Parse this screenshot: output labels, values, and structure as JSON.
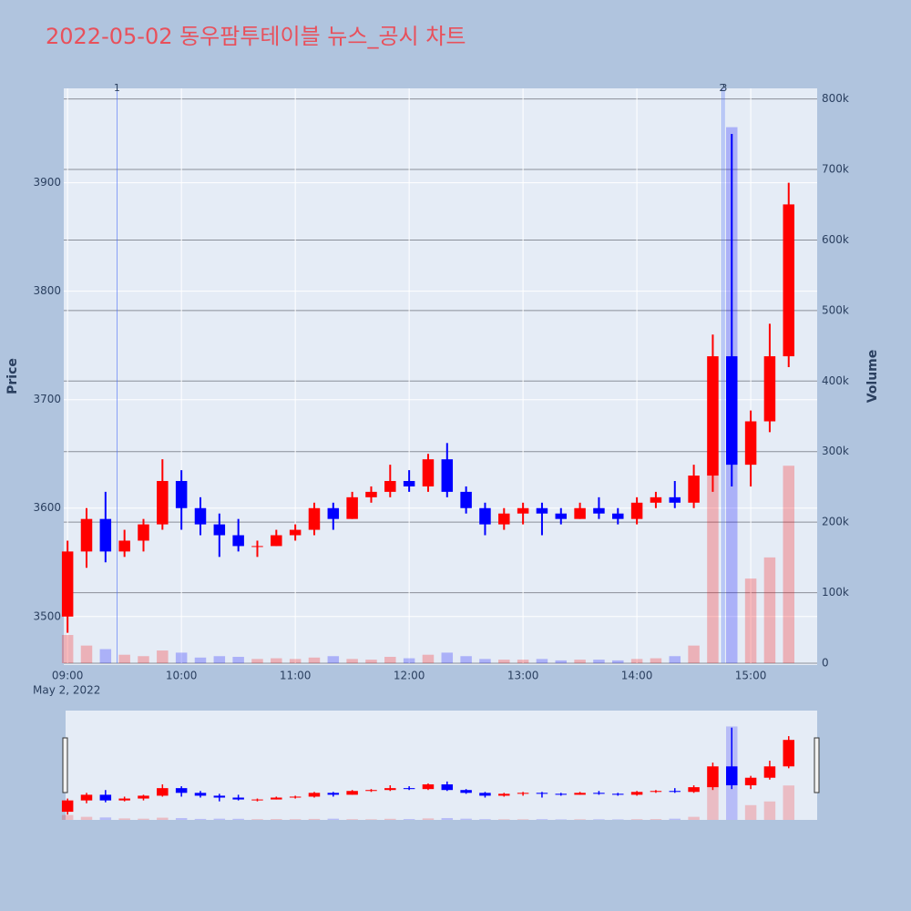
{
  "chart_data": {
    "type": "candlestick",
    "title": "2022-05-02 동우팜투테이블 뉴스_공시 차트",
    "y_label": "Price",
    "y2_label": "Volume",
    "x_date_label": "May 2, 2022",
    "increasing_color": "#ff0000",
    "decreasing_color": "#0000ff",
    "grid": true,
    "x": [
      "09:00",
      "09:10",
      "09:20",
      "09:30",
      "09:40",
      "09:50",
      "10:00",
      "10:10",
      "10:20",
      "10:30",
      "10:40",
      "10:50",
      "11:00",
      "11:10",
      "11:20",
      "11:30",
      "11:40",
      "11:50",
      "12:00",
      "12:10",
      "12:20",
      "12:30",
      "12:40",
      "12:50",
      "13:00",
      "13:10",
      "13:20",
      "13:30",
      "13:40",
      "13:50",
      "14:00",
      "14:10",
      "14:20",
      "14:30",
      "14:40",
      "14:50",
      "15:00",
      "15:10",
      "15:20"
    ],
    "open": [
      3500,
      3560,
      3590,
      3560,
      3570,
      3585,
      3625,
      3600,
      3585,
      3575,
      3565,
      3565,
      3575,
      3580,
      3600,
      3590,
      3610,
      3615,
      3625,
      3620,
      3645,
      3615,
      3600,
      3585,
      3595,
      3600,
      3595,
      3590,
      3600,
      3595,
      3590,
      3605,
      3610,
      3605,
      3630,
      3740,
      3640,
      3680,
      3740
    ],
    "high": [
      3570,
      3600,
      3615,
      3580,
      3590,
      3645,
      3635,
      3610,
      3595,
      3590,
      3570,
      3580,
      3585,
      3605,
      3605,
      3615,
      3620,
      3640,
      3635,
      3650,
      3660,
      3620,
      3605,
      3600,
      3605,
      3605,
      3600,
      3605,
      3610,
      3600,
      3610,
      3615,
      3625,
      3640,
      3760,
      3945,
      3690,
      3770,
      3900
    ],
    "low": [
      3485,
      3545,
      3550,
      3555,
      3560,
      3580,
      3580,
      3575,
      3555,
      3560,
      3555,
      3565,
      3570,
      3575,
      3580,
      3590,
      3605,
      3610,
      3615,
      3615,
      3610,
      3595,
      3575,
      3580,
      3585,
      3575,
      3585,
      3590,
      3590,
      3585,
      3585,
      3600,
      3600,
      3600,
      3615,
      3620,
      3620,
      3670,
      3730
    ],
    "close": [
      3560,
      3590,
      3560,
      3570,
      3585,
      3625,
      3600,
      3585,
      3575,
      3565,
      3565,
      3575,
      3580,
      3600,
      3590,
      3610,
      3615,
      3625,
      3620,
      3645,
      3615,
      3600,
      3585,
      3595,
      3600,
      3595,
      3590,
      3600,
      3595,
      3590,
      3605,
      3610,
      3605,
      3630,
      3740,
      3640,
      3680,
      3740,
      3880
    ],
    "volume": [
      40000,
      25000,
      20000,
      12000,
      10000,
      18000,
      15000,
      8000,
      10000,
      9000,
      6000,
      7000,
      6000,
      8000,
      10000,
      6000,
      5000,
      9000,
      7000,
      12000,
      15000,
      10000,
      6000,
      5000,
      5000,
      6000,
      4000,
      5000,
      5000,
      4000,
      6000,
      7000,
      10000,
      25000,
      300000,
      760000,
      120000,
      150000,
      280000
    ],
    "xlim": [
      "08:58",
      "15:35"
    ],
    "xticks": [
      "09:00",
      "10:00",
      "11:00",
      "12:00",
      "13:00",
      "14:00",
      "15:00"
    ],
    "ylim": [
      3457,
      3987
    ],
    "yticks": [
      3500,
      3600,
      3700,
      3800,
      3900
    ],
    "y2lim": [
      0,
      815000
    ],
    "y2ticks": [
      0,
      {
        "value": 100000,
        "label": "100k"
      },
      {
        "value": 200000,
        "label": "200k"
      },
      {
        "value": 300000,
        "label": "300k"
      },
      {
        "value": 400000,
        "label": "400k"
      },
      {
        "value": 500000,
        "label": "500k"
      },
      {
        "value": 600000,
        "label": "600k"
      },
      {
        "value": 700000,
        "label": "700k"
      },
      {
        "value": 800000,
        "label": "800k"
      }
    ],
    "annotations": [
      {
        "x": "09:26",
        "text": "1"
      },
      {
        "x": "14:45",
        "text": "2"
      },
      {
        "x": "14:46",
        "text": "3"
      }
    ]
  }
}
